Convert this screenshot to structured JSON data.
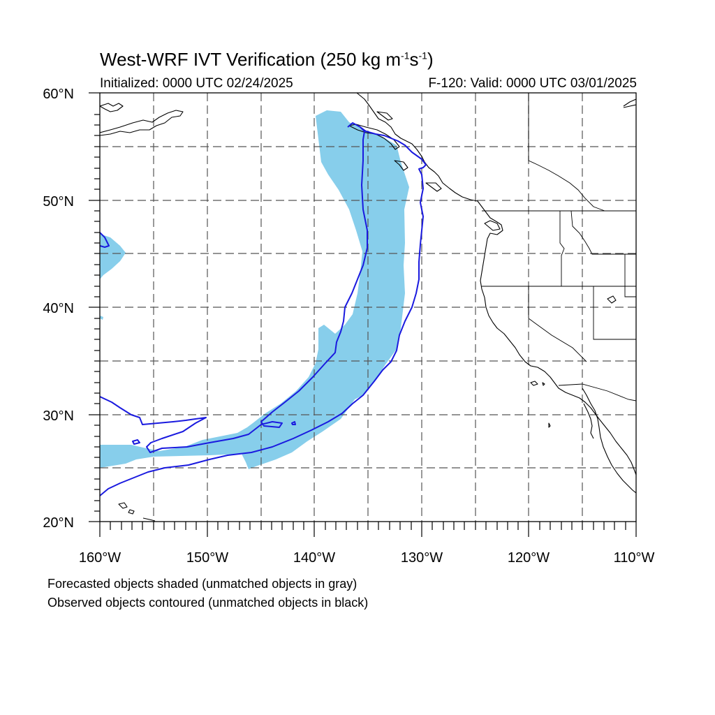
{
  "title": {
    "main": "West-WRF IVT Verification (250 kg m",
    "exp1": "-1",
    "mid": "s",
    "exp2": "-1",
    "end": ")"
  },
  "subtitle": {
    "left": "Initialized: 0000 UTC 02/24/2025",
    "right": "F-120: Valid: 0000 UTC 03/01/2025"
  },
  "map": {
    "extent": {
      "lon_min": -160,
      "lon_max": -110,
      "lat_min": 20,
      "lat_max": 60
    },
    "lat_labels": [
      "20°N",
      "30°N",
      "40°N",
      "50°N",
      "60°N"
    ],
    "lon_labels": [
      "160°W",
      "150°W",
      "140°W",
      "130°W",
      "120°W",
      "110°W"
    ],
    "colors": {
      "forecast_fill": "#87ceeb",
      "observed_contour": "#1a1adf",
      "coastline": "#000000",
      "grid": "#555555"
    }
  },
  "footnotes": [
    "Forecasted objects shaded (unmatched objects in gray)",
    "Observed objects contoured (unmatched objects in black)"
  ]
}
